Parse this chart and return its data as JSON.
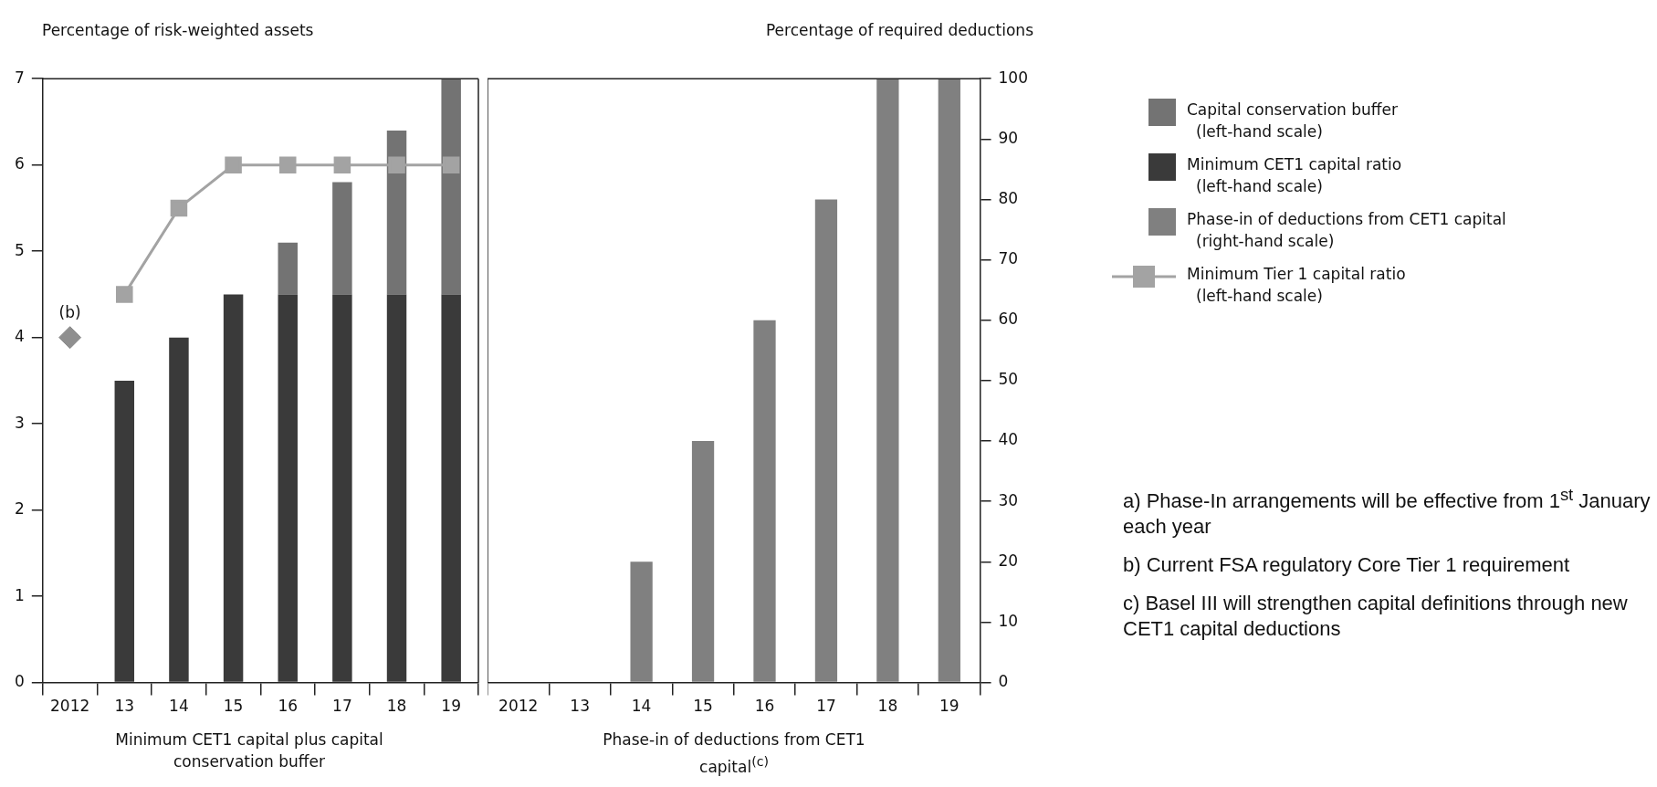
{
  "chart_data": [
    {
      "type": "bar",
      "stacked": true,
      "ylabel": "Percentage of risk-weighted assets",
      "xlabel": "Minimum CET1 capital plus capital conservation buffer",
      "categories": [
        "2012",
        "13",
        "14",
        "15",
        "16",
        "17",
        "18",
        "19"
      ],
      "ylim": [
        0,
        7
      ],
      "yticks": [
        0,
        1,
        2,
        3,
        4,
        5,
        6,
        7
      ],
      "grid": false,
      "legend": "right",
      "series": [
        {
          "name": "Minimum CET1 capital ratio (left-hand scale)",
          "color": "#3a3a3a",
          "values": [
            null,
            3.5,
            4,
            4.5,
            4.5,
            4.5,
            4.5,
            4.5
          ]
        },
        {
          "name": "Capital conservation buffer (left-hand scale)",
          "color": "#737373",
          "values": [
            null,
            null,
            null,
            null,
            0.6,
            1.3,
            1.9,
            2.5
          ]
        },
        {
          "name": "Minimum Tier 1 capital ratio (left-hand scale)",
          "type": "line",
          "marker": "square",
          "color": "#a3a3a3",
          "values": [
            null,
            4.5,
            5.5,
            6,
            6,
            6,
            6,
            6
          ]
        },
        {
          "type": "scatter",
          "marker": "diamond",
          "color": "#8f8f8f",
          "values": [
            4,
            null,
            null,
            null,
            null,
            null,
            null,
            null
          ]
        }
      ],
      "annotations": [
        {
          "text": "(b)",
          "x": "2012",
          "y": 4
        }
      ]
    },
    {
      "type": "bar",
      "ylabel": "Percentage of required deductions",
      "xlabel": "Phase-in of deductions from CET1 capital$^{(c)}$",
      "categories": [
        "2012",
        "13",
        "14",
        "15",
        "16",
        "17",
        "18",
        "19"
      ],
      "ylim": [
        0,
        100
      ],
      "yticks": [
        0,
        10,
        20,
        30,
        40,
        50,
        60,
        70,
        80,
        90,
        100
      ],
      "grid": false,
      "legend": "right",
      "series": [
        {
          "name": "Phase-in of deductions from CET1 capital (right-hand scale)",
          "color": "#808080",
          "values": [
            null,
            null,
            20,
            40,
            60,
            80,
            100,
            100
          ]
        }
      ],
      "annotations": [
        "a) Phase-In arrangements will be effective from 1$^{st}$ January each year",
        "b) Current FSA regulatory Core Tier 1 requirement",
        "c) Basel III will strengthen capital definitions through new CET1 capital deductions"
      ]
    }
  ]
}
